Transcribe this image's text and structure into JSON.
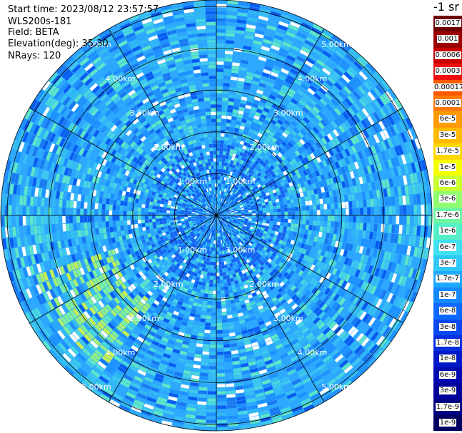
{
  "header": {
    "start_time": "Start time: 2023/08/12 23:57:57",
    "instrument": "WLS200s-181",
    "field": "Field: BETA",
    "elevation": "Elevation(deg): 35.30",
    "nrays": "NRays: 120"
  },
  "colorbar": {
    "unit_label": "-1 sr",
    "labels": [
      "0.0017",
      "0.001",
      "0.0006",
      "0.0003",
      "0.00017",
      "0.0001",
      "6e-5",
      "3e-5",
      "1.7e-5",
      "1e-5",
      "6e-6",
      "3e-6",
      "1.7e-6",
      "1e-6",
      "6e-7",
      "3e-7",
      "1.7e-7",
      "1e-7",
      "6e-8",
      "3e-8",
      "1.7e-8",
      "1e-8",
      "6e-9",
      "3e-9",
      "1.7e-9",
      "1e-9"
    ],
    "colors": [
      "#6e0000",
      "#9a0000",
      "#c80000",
      "#ee1010",
      "#ff5a00",
      "#ff7a00",
      "#ff9a00",
      "#ffbb00",
      "#ffd800",
      "#f5ff00",
      "#c8ff30",
      "#90ff70",
      "#6cf8a0",
      "#55f0c8",
      "#40e0ef",
      "#30c8f8",
      "#20a8ff",
      "#1488ff",
      "#0c68ff",
      "#0848f0",
      "#0430e0",
      "#0018c8",
      "#0008b0",
      "#00009a",
      "#000080",
      "#000060"
    ]
  },
  "range_rings": {
    "labels": [
      "1.00km",
      "2.00km",
      "3.00km",
      "4.00km",
      "5.00km"
    ]
  }
}
